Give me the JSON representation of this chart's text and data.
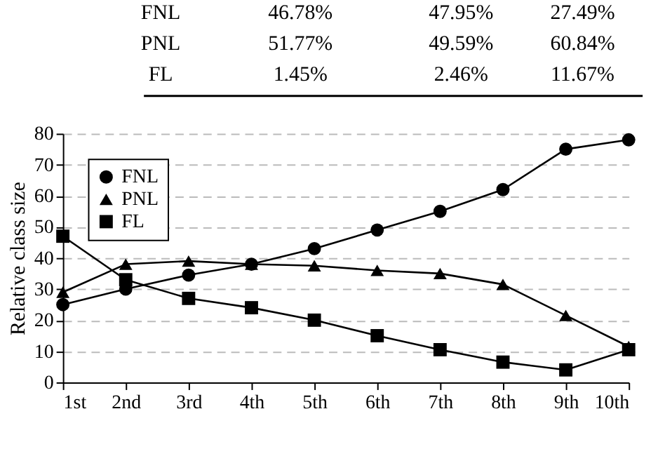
{
  "chart_data": {
    "type": "line",
    "ylabel": "Relative class size",
    "annotations": [
      "FNL 46.78% 47.95% 27.49%",
      "PNL 51.77% 49.59% 60.84%",
      "FL 1.45% 2.46% 11.67%"
    ],
    "categories": [
      "1st",
      "2nd",
      "3rd",
      "4th",
      "5th",
      "6th",
      "7th",
      "8th",
      "9th",
      "10th"
    ],
    "series": [
      {
        "name": "FNL",
        "color": "#000000",
        "marker": "circle",
        "values": [
          25,
          30,
          34.5,
          38,
          43,
          49,
          55,
          62,
          75,
          78
        ]
      },
      {
        "name": "PNL",
        "color": "#000000",
        "marker": "triangle",
        "values": [
          29,
          38,
          39,
          38,
          37.5,
          36,
          35,
          31.5,
          21.5,
          11.5
        ]
      },
      {
        "name": "FL",
        "color": "#000000",
        "marker": "square",
        "values": [
          47,
          33,
          27,
          24,
          20,
          15,
          10.5,
          6.5,
          4,
          10.5
        ]
      }
    ],
    "ylim": [
      0,
      80
    ],
    "yticks": [
      0,
      10,
      20,
      30,
      40,
      50,
      60,
      70,
      80
    ],
    "grid": "y",
    "legend": "top left",
    "line_style": "solid"
  }
}
